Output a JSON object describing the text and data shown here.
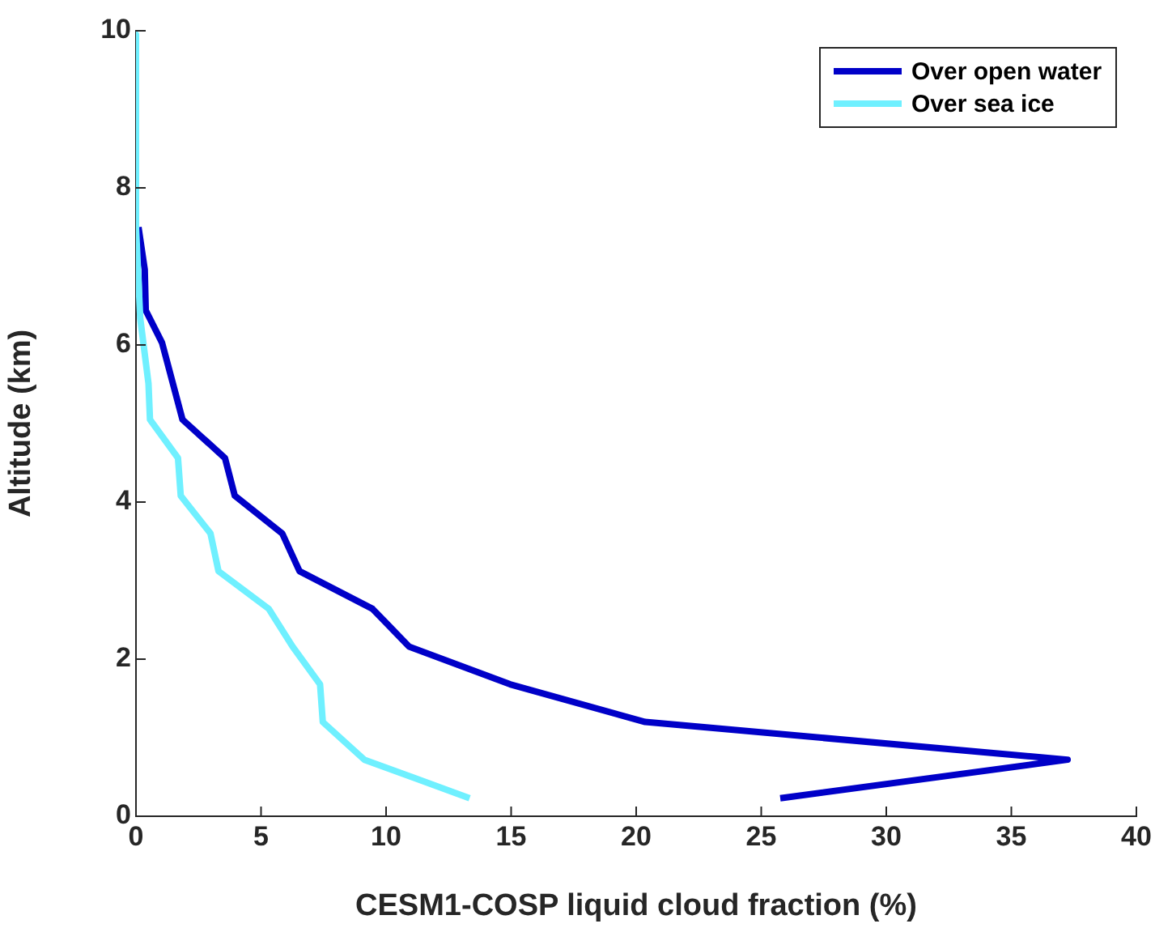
{
  "chart_data": {
    "type": "line",
    "xlabel": "CESM1-COSP liquid cloud fraction (%)",
    "ylabel": "Altitude (km)",
    "xlim": [
      0,
      40
    ],
    "xticks": [
      0,
      5,
      10,
      15,
      20,
      25,
      30,
      35,
      40
    ],
    "ylim": [
      0,
      10
    ],
    "yticks": [
      0,
      2,
      4,
      6,
      8,
      10
    ],
    "grid": false,
    "legend": "top right",
    "marker": "none",
    "line_style": "solid",
    "series": [
      {
        "name": "Over open water",
        "color": "#0000c8",
        "x": [
          0.1,
          0.35,
          0.39,
          1.04,
          1.86,
          3.56,
          3.95,
          5.85,
          6.54,
          9.46,
          10.92,
          14.96,
          20.36,
          37.25,
          25.76
        ],
        "values": [
          7.5,
          6.96,
          6.44,
          6.03,
          5.05,
          4.56,
          4.08,
          3.6,
          3.12,
          2.64,
          2.16,
          1.68,
          1.2,
          0.72,
          0.23
        ]
      },
      {
        "name": "Over sea ice",
        "color": "#6ff0ff",
        "x": [
          0,
          0,
          0.17,
          0.5,
          0.56,
          1.68,
          1.79,
          2.98,
          3.3,
          5.31,
          6.26,
          7.36,
          7.47,
          9.13,
          13.34
        ],
        "values": [
          9.95,
          7.5,
          6.34,
          5.51,
          5.05,
          4.56,
          4.08,
          3.6,
          3.12,
          2.64,
          2.16,
          1.68,
          1.2,
          0.72,
          0.23
        ]
      }
    ]
  }
}
